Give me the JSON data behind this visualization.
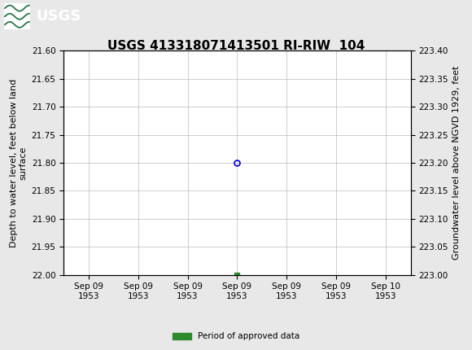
{
  "title": "USGS 413318071413501 RI-RIW  104",
  "xlabel_ticks": [
    "Sep 09\n1953",
    "Sep 09\n1953",
    "Sep 09\n1953",
    "Sep 09\n1953",
    "Sep 09\n1953",
    "Sep 09\n1953",
    "Sep 10\n1953"
  ],
  "ylabel_left": "Depth to water level, feet below land\nsurface",
  "ylabel_right": "Groundwater level above NGVD 1929, feet",
  "ylim_left": [
    22.0,
    21.6
  ],
  "ylim_right": [
    223.0,
    223.4
  ],
  "yticks_left": [
    22.0,
    21.95,
    21.9,
    21.85,
    21.8,
    21.75,
    21.7,
    21.65,
    21.6
  ],
  "yticks_right": [
    223.0,
    223.05,
    223.1,
    223.15,
    223.2,
    223.25,
    223.3,
    223.35,
    223.4
  ],
  "data_point_y": 21.8,
  "data_point_color": "#0000cc",
  "green_bar_y": 22.0,
  "green_color": "#2d8a2d",
  "background_color": "#e8e8e8",
  "plot_bg_color": "#ffffff",
  "grid_color": "#aaaaaa",
  "header_bg_color": "#1a6e3c",
  "header_text_color": "#ffffff",
  "title_fontsize": 11,
  "tick_fontsize": 7.5,
  "axis_label_fontsize": 8,
  "legend_label": "Period of approved data",
  "x_positions": [
    0,
    1,
    2,
    3,
    4,
    5,
    6
  ],
  "x_data_pos": 3,
  "xlim": [
    -0.5,
    6.5
  ]
}
